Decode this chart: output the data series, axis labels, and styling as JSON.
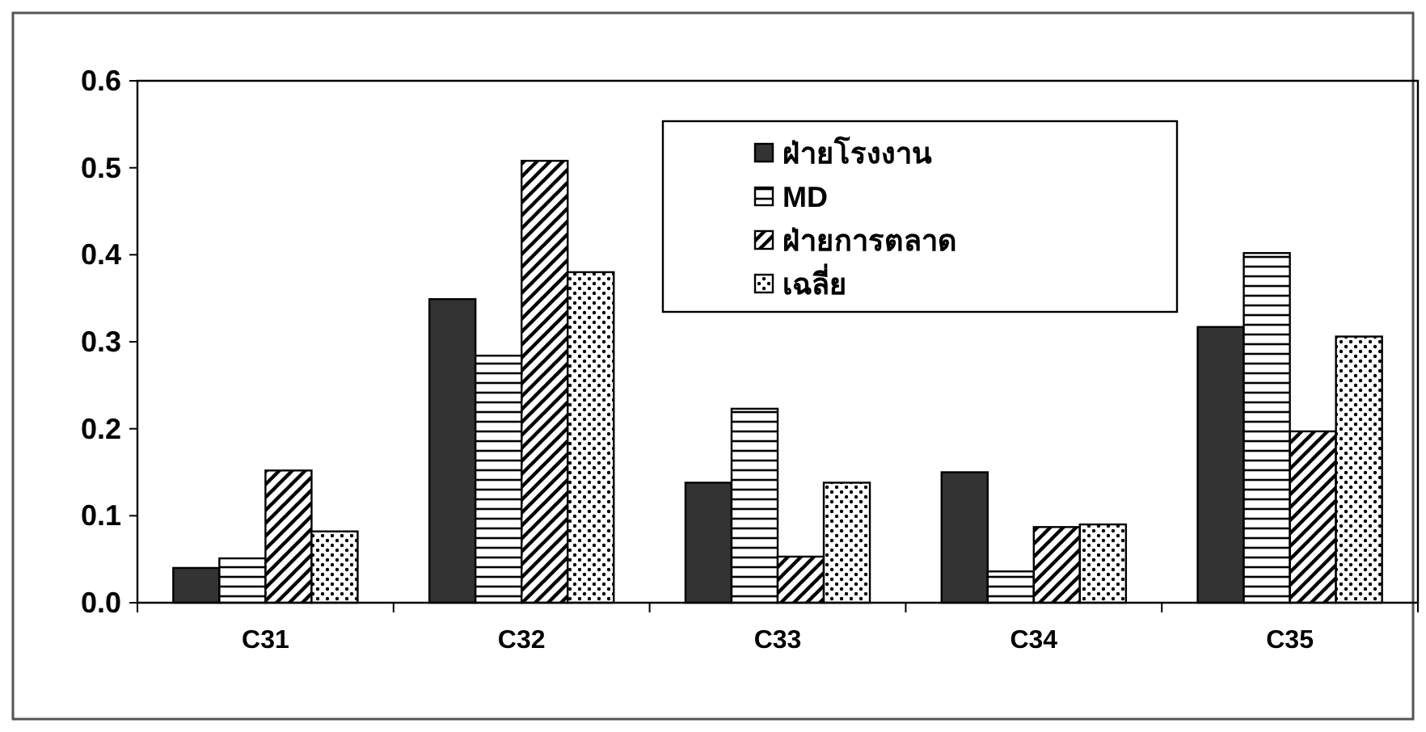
{
  "chart_data": {
    "type": "bar",
    "categories": [
      "C31",
      "C32",
      "C33",
      "C34",
      "C35"
    ],
    "series": [
      {
        "name": "ฝ่ายโรงงาน",
        "color": "#333333",
        "values": [
          0.04,
          0.349,
          0.138,
          0.15,
          0.317
        ]
      },
      {
        "name": "MD",
        "color": "#000000",
        "values": [
          0.051,
          0.284,
          0.223,
          0.036,
          0.402
        ]
      },
      {
        "name": "ฝ่ายการตลาด",
        "color": "#000000",
        "values": [
          0.152,
          0.508,
          0.053,
          0.087,
          0.197
        ]
      },
      {
        "name": "เฉลี่ย",
        "color": "#000000",
        "values": [
          0.082,
          0.38,
          0.138,
          0.09,
          0.306
        ]
      }
    ],
    "ylim": [
      0,
      0.6
    ],
    "yticks": [
      {
        "value": 0,
        "label": "0.0"
      },
      0.1,
      0.2,
      0.3,
      0.4,
      0.5,
      0.6
    ],
    "grid": false,
    "legend": "top"
  }
}
